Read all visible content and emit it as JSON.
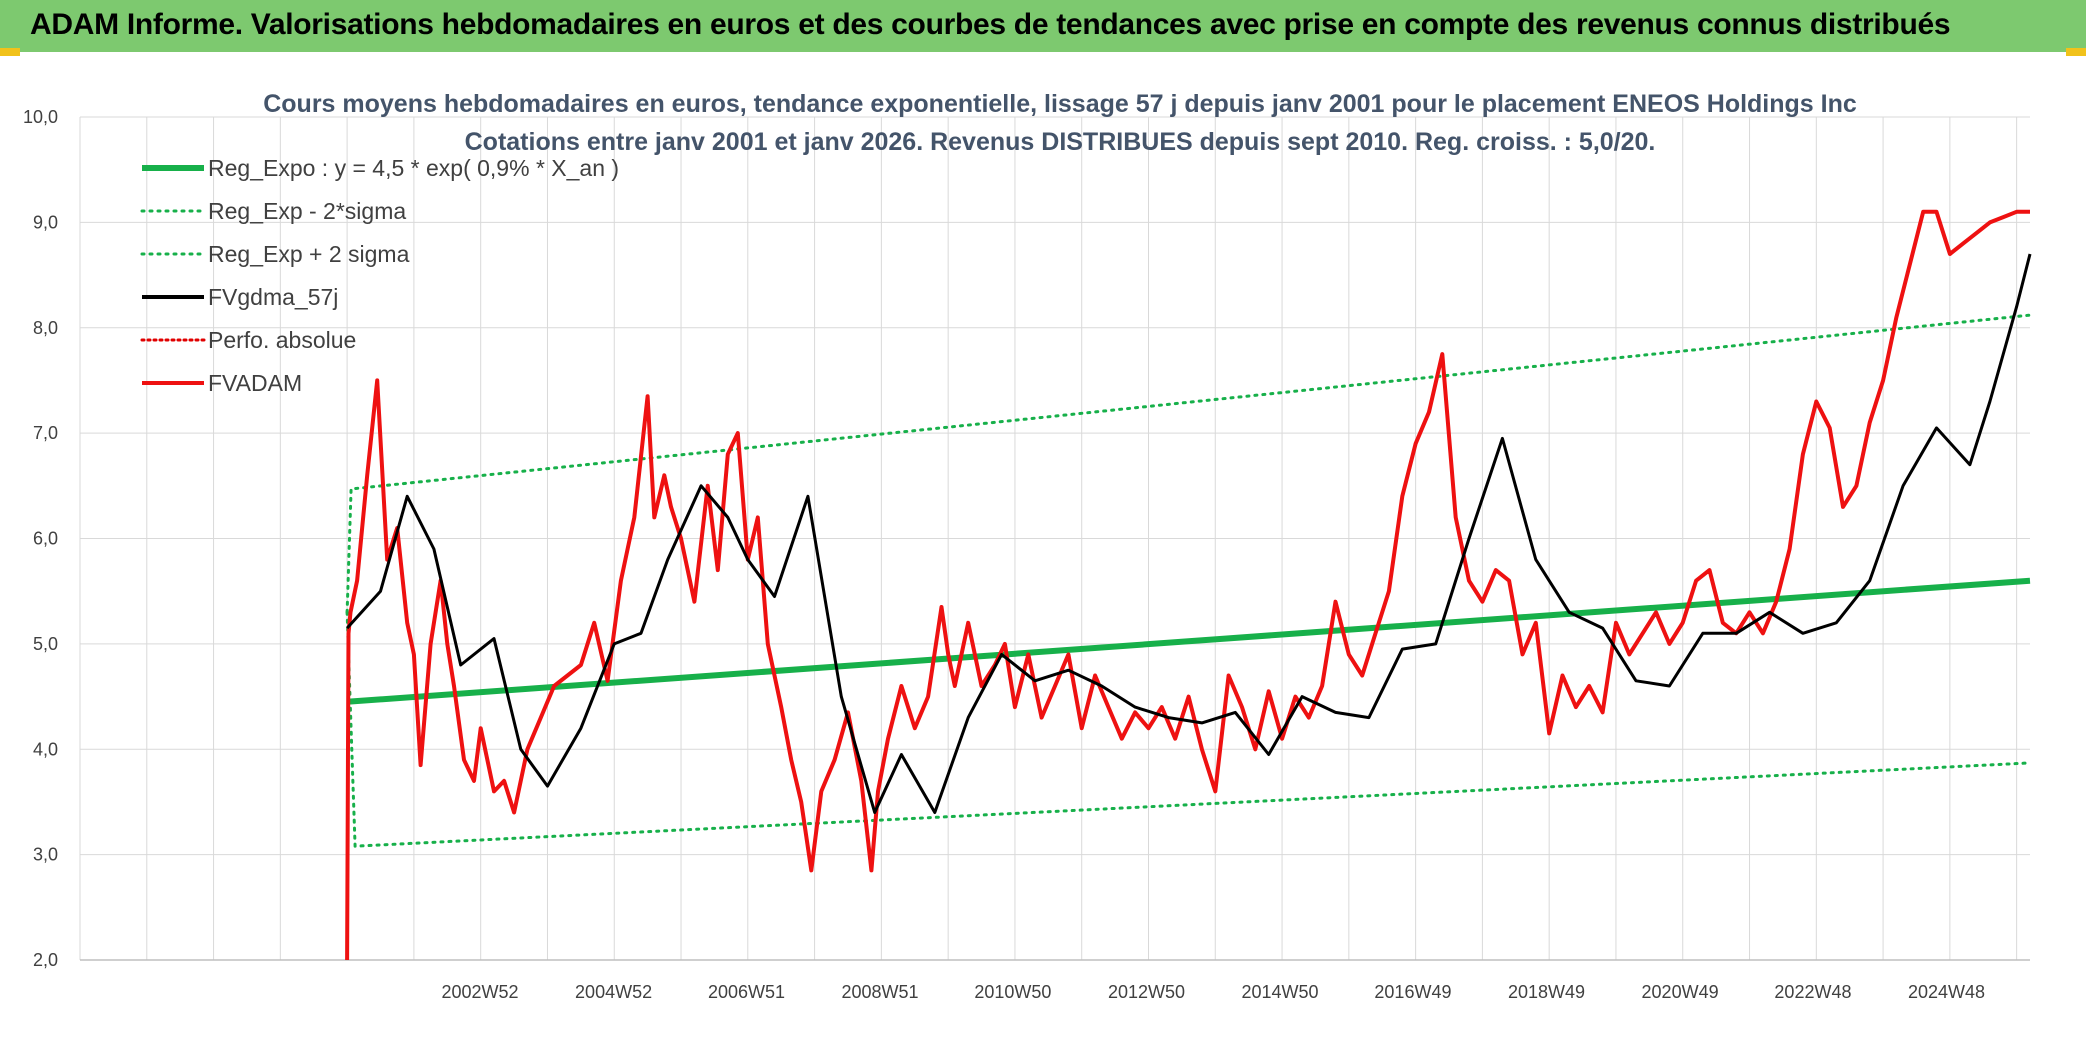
{
  "header": {
    "banner": "ADAM Informe. Valorisations hebdomadaires en euros et des courbes de tendances avec prise en compte des revenus connus distribués"
  },
  "colors": {
    "banner_bg": "#7dc96f",
    "reg": "#17b04a",
    "smooth": "#000000",
    "fv": "#ee1111",
    "perfo": "#e00000",
    "grid": "#d9d9d9"
  },
  "chart_data": {
    "type": "line",
    "title": "Cours moyens hebdomadaires en euros, tendance exponentielle, lissage 57 j depuis janv 2001 pour le placement ENEOS Holdings Inc",
    "subtitle": "Cotations entre janv 2001 et janv 2026. Revenus DISTRIBUES depuis sept 2010. Reg. croiss. : 5,0/20.",
    "xlabel": "",
    "ylabel": "",
    "ylim": [
      2.0,
      10.0
    ],
    "yticks": [
      "2,0",
      "3,0",
      "4,0",
      "5,0",
      "6,0",
      "7,0",
      "8,0",
      "9,0",
      "10,0"
    ],
    "xlim": [
      1997.0,
      2026.2
    ],
    "x_tick_labels": [
      "2002W52",
      "2004W52",
      "2006W51",
      "2008W51",
      "2010W50",
      "2012W50",
      "2014W50",
      "2016W49",
      "2018W49",
      "2020W49",
      "2022W48",
      "2024W48"
    ],
    "x_tick_positions": [
      2002.99,
      2004.99,
      2006.98,
      2008.98,
      2010.97,
      2012.97,
      2014.97,
      2016.96,
      2018.96,
      2020.96,
      2022.95,
      2024.95
    ],
    "legend": [
      {
        "label": "Reg_Expo : y = 4,5 * exp( 0,9% *  X_an )",
        "style": "solid-thick",
        "color": "#17b04a"
      },
      {
        "label": "Reg_Exp - 2*sigma",
        "style": "dotted",
        "color": "#17b04a"
      },
      {
        "label": "Reg_Exp + 2 sigma",
        "style": "dotted",
        "color": "#17b04a"
      },
      {
        "label": "FVgdma_57j",
        "style": "solid",
        "color": "#000000"
      },
      {
        "label": "Perfo. absolue",
        "style": "dotted",
        "color": "#e00000"
      },
      {
        "label": "FVADAM",
        "style": "solid",
        "color": "#ee1111"
      }
    ],
    "series": [
      {
        "name": "Reg_Expo : y = 4,5 * exp( 0,9% *  X_an )",
        "x": [
          2001.0,
          2026.2
        ],
        "values": [
          4.45,
          5.6
        ]
      },
      {
        "name": "Reg_Exp - 2*sigma",
        "x": [
          2001.0,
          2001.12,
          2026.2
        ],
        "values": [
          5.3,
          3.08,
          3.87
        ]
      },
      {
        "name": "Reg_Exp + 2 sigma",
        "x": [
          2001.0,
          2001.06,
          2026.2
        ],
        "values": [
          5.3,
          6.47,
          8.12
        ]
      },
      {
        "name": "FVgdma_57j",
        "x": [
          2001.0,
          2001.5,
          2001.9,
          2002.3,
          2002.7,
          2003.2,
          2003.6,
          2004.0,
          2004.5,
          2005.0,
          2005.4,
          2005.8,
          2006.3,
          2006.7,
          2007.0,
          2007.4,
          2007.9,
          2008.4,
          2008.9,
          2009.3,
          2009.8,
          2010.3,
          2010.8,
          2011.3,
          2011.8,
          2012.3,
          2012.8,
          2013.3,
          2013.8,
          2014.3,
          2014.8,
          2015.3,
          2015.8,
          2016.3,
          2016.8,
          2017.3,
          2017.8,
          2018.3,
          2018.8,
          2019.3,
          2019.8,
          2020.3,
          2020.8,
          2021.3,
          2021.8,
          2022.3,
          2022.8,
          2023.3,
          2023.8,
          2024.3,
          2024.8,
          2025.3,
          2025.6,
          2026.0,
          2026.2
        ],
        "values": [
          5.15,
          5.5,
          6.4,
          5.9,
          4.8,
          5.05,
          4.0,
          3.65,
          4.2,
          5.0,
          5.1,
          5.8,
          6.5,
          6.2,
          5.8,
          5.45,
          6.4,
          4.5,
          3.4,
          3.95,
          3.4,
          4.3,
          4.9,
          4.65,
          4.75,
          4.6,
          4.4,
          4.3,
          4.25,
          4.35,
          3.95,
          4.5,
          4.35,
          4.3,
          4.95,
          5.0,
          6.0,
          6.95,
          5.8,
          5.3,
          5.15,
          4.65,
          4.6,
          5.1,
          5.1,
          5.3,
          5.1,
          5.2,
          5.6,
          6.5,
          7.05,
          6.7,
          7.3,
          8.2,
          8.7
        ]
      },
      {
        "name": "Perfo. absolue",
        "x": [],
        "values": []
      },
      {
        "name": "FVADAM",
        "x": [
          2001.0,
          2001.02,
          2001.05,
          2001.15,
          2001.3,
          2001.45,
          2001.6,
          2001.75,
          2001.9,
          2002.0,
          2002.1,
          2002.25,
          2002.4,
          2002.5,
          2002.6,
          2002.75,
          2002.9,
          2003.0,
          2003.2,
          2003.35,
          2003.5,
          2003.7,
          2003.9,
          2004.1,
          2004.3,
          2004.5,
          2004.7,
          2004.9,
          2005.1,
          2005.3,
          2005.5,
          2005.6,
          2005.75,
          2005.85,
          2006.0,
          2006.2,
          2006.4,
          2006.55,
          2006.7,
          2006.85,
          2007.0,
          2007.15,
          2007.3,
          2007.5,
          2007.65,
          2007.8,
          2007.95,
          2008.1,
          2008.3,
          2008.5,
          2008.7,
          2008.85,
          2008.95,
          2009.1,
          2009.3,
          2009.5,
          2009.7,
          2009.9,
          2010.0,
          2010.1,
          2010.3,
          2010.5,
          2010.7,
          2010.85,
          2011.0,
          2011.2,
          2011.4,
          2011.6,
          2011.8,
          2012.0,
          2012.2,
          2012.4,
          2012.6,
          2012.8,
          2013.0,
          2013.2,
          2013.4,
          2013.6,
          2013.8,
          2014.0,
          2014.2,
          2014.4,
          2014.6,
          2014.8,
          2015.0,
          2015.2,
          2015.4,
          2015.6,
          2015.8,
          2016.0,
          2016.2,
          2016.4,
          2016.6,
          2016.8,
          2017.0,
          2017.2,
          2017.4,
          2017.6,
          2017.8,
          2018.0,
          2018.2,
          2018.4,
          2018.6,
          2018.8,
          2019.0,
          2019.2,
          2019.4,
          2019.6,
          2019.8,
          2020.0,
          2020.2,
          2020.4,
          2020.6,
          2020.8,
          2021.0,
          2021.2,
          2021.4,
          2021.6,
          2021.8,
          2022.0,
          2022.2,
          2022.4,
          2022.6,
          2022.8,
          2023.0,
          2023.2,
          2023.4,
          2023.6,
          2023.8,
          2024.0,
          2024.2,
          2024.4,
          2024.6,
          2024.8,
          2025.0,
          2025.2,
          2025.4,
          2025.6,
          2025.8,
          2026.0,
          2026.2
        ],
        "values": [
          2.0,
          5.1,
          5.3,
          5.6,
          6.6,
          7.5,
          5.8,
          6.1,
          5.2,
          4.9,
          3.85,
          5.0,
          5.6,
          5.0,
          4.6,
          3.9,
          3.7,
          4.2,
          3.6,
          3.7,
          3.4,
          4.0,
          4.3,
          4.6,
          4.7,
          4.8,
          5.2,
          4.65,
          5.6,
          6.2,
          7.35,
          6.2,
          6.6,
          6.3,
          6.0,
          5.4,
          6.5,
          5.7,
          6.8,
          7.0,
          5.8,
          6.2,
          5.0,
          4.4,
          3.9,
          3.5,
          2.85,
          3.6,
          3.9,
          4.35,
          3.7,
          2.85,
          3.6,
          4.1,
          4.6,
          4.2,
          4.5,
          5.35,
          4.9,
          4.6,
          5.2,
          4.6,
          4.8,
          5.0,
          4.4,
          4.9,
          4.3,
          4.6,
          4.9,
          4.2,
          4.7,
          4.4,
          4.1,
          4.35,
          4.2,
          4.4,
          4.1,
          4.5,
          4.0,
          3.6,
          4.7,
          4.4,
          4.0,
          4.55,
          4.1,
          4.5,
          4.3,
          4.6,
          5.4,
          4.9,
          4.7,
          5.1,
          5.5,
          6.4,
          6.9,
          7.2,
          7.75,
          6.2,
          5.6,
          5.4,
          5.7,
          5.6,
          4.9,
          5.2,
          4.15,
          4.7,
          4.4,
          4.6,
          4.35,
          5.2,
          4.9,
          5.1,
          5.3,
          5.0,
          5.2,
          5.6,
          5.7,
          5.2,
          5.1,
          5.3,
          5.1,
          5.4,
          5.9,
          6.8,
          7.3,
          7.05,
          6.3,
          6.5,
          7.1,
          7.5,
          8.1,
          8.6,
          9.1,
          9.1,
          8.7,
          8.8,
          8.9,
          9.0,
          9.05,
          9.1,
          9.1
        ]
      }
    ]
  }
}
